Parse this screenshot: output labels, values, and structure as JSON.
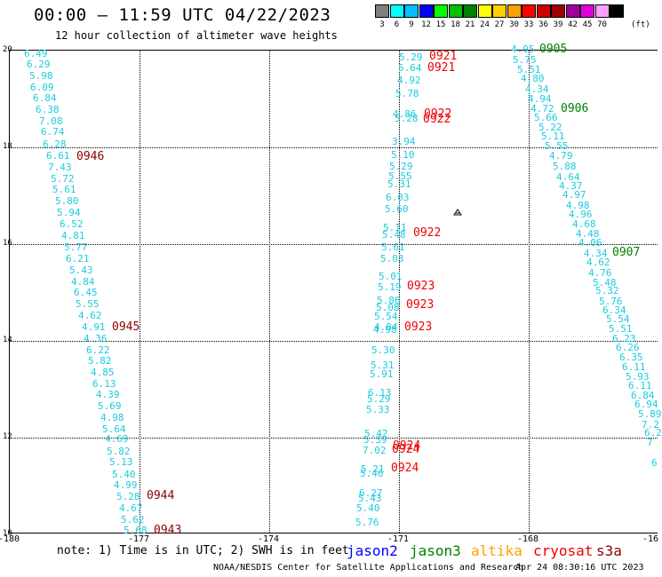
{
  "header": {
    "title": "00:00 – 11:59 UTC 04/22/2023",
    "subtitle": "12 hour collection of altimeter wave heights"
  },
  "legend": {
    "unit": "(ft)",
    "swatches": [
      {
        "label": "3",
        "color": "#808080"
      },
      {
        "label": "6",
        "color": "#00ffff"
      },
      {
        "label": "9",
        "color": "#00c0ff"
      },
      {
        "label": "12",
        "color": "#0000ff"
      },
      {
        "label": "15",
        "color": "#00ff00"
      },
      {
        "label": "18",
        "color": "#00c000"
      },
      {
        "label": "21",
        "color": "#008000"
      },
      {
        "label": "24",
        "color": "#ffff00"
      },
      {
        "label": "27",
        "color": "#ffd000"
      },
      {
        "label": "30",
        "color": "#ffa000"
      },
      {
        "label": "33",
        "color": "#ff0000"
      },
      {
        "label": "36",
        "color": "#d00000"
      },
      {
        "label": "39",
        "color": "#a00000"
      },
      {
        "label": "42",
        "color": "#a000a0"
      },
      {
        "label": "45",
        "color": "#e000e0"
      },
      {
        "label": "70",
        "color": "#ffa0ff"
      },
      {
        "label": "",
        "color": "#000000"
      }
    ]
  },
  "map": {
    "lon_range": [
      -180,
      -165.5
    ],
    "lat_range": [
      10,
      20
    ],
    "x_ticks": [
      "-180",
      "-177",
      "-174",
      "-171",
      "-168",
      "-16"
    ],
    "y_ticks": [
      "20",
      "18",
      "16",
      "14",
      "12",
      "10"
    ],
    "tracks": [
      {
        "pass": "west",
        "values": [
          "6.49",
          "6.29",
          "5.98",
          "6.09",
          "6.84",
          "6.38",
          "7.08",
          "6.74",
          "6.28",
          "6.61",
          "7.43",
          "5.72",
          "5.61",
          "5.80",
          "5.94",
          "6.52",
          "4.81",
          "5.77",
          "6.21",
          "5.43",
          "4.84",
          "6.45",
          "5.55",
          "4.62",
          "4.91",
          "4.36",
          "6.22",
          "5.82",
          "4.85",
          "6.13",
          "4.39",
          "5.69",
          "4.98",
          "5.64",
          "4.69",
          "5.82",
          "5.13",
          "5.40",
          "4.99",
          "5.28",
          "4.67",
          "5.62",
          "5.68"
        ]
      },
      {
        "pass": "middle",
        "values": [
          "5.29",
          "5.64",
          "4.92",
          "5.78",
          "4.86",
          "5.28",
          "3.94",
          "5.10",
          "5.29",
          "5.55",
          "5.31",
          "6.03",
          "5.60",
          "5.11",
          "5.48",
          "5.61",
          "5.03",
          "5.01",
          "5.19",
          "5.86",
          "5.08",
          "5.54",
          "4.84",
          "4.98",
          "5.30",
          "5.31",
          "5.91",
          "6.13",
          "5.29",
          "5.33",
          "5.42",
          "5.39",
          "7.02",
          "5.21",
          "5.40",
          "6.27",
          "5.43",
          "5.40",
          "5.76"
        ]
      },
      {
        "pass": "east",
        "values": [
          "4.95",
          "5.75",
          "5.51",
          "4.80",
          "4.34",
          "4.94",
          "4.72",
          "5.66",
          "5.22",
          "5.11",
          "5.55",
          "4.79",
          "5.88",
          "4.64",
          "4.37",
          "4.97",
          "4.98",
          "4.96",
          "4.68",
          "4.48",
          "4.06",
          "4.34",
          "4.62",
          "4.76",
          "5.48",
          "5.32",
          "5.76",
          "6.34",
          "5.54",
          "5.51",
          "6.23",
          "6.26",
          "6.35",
          "6.11",
          "5.93",
          "6.11",
          "6.84",
          "6.94",
          "5.89",
          "7.2",
          "6.2",
          "7",
          "6"
        ]
      }
    ],
    "time_labels": [
      {
        "text": "0921",
        "color": "#ee0000"
      },
      {
        "text": "0921",
        "color": "#ee0000"
      },
      {
        "text": "0922",
        "color": "#ee0000"
      },
      {
        "text": "0922",
        "color": "#ee0000"
      },
      {
        "text": "0922",
        "color": "#ee0000"
      },
      {
        "text": "0923",
        "color": "#ee0000"
      },
      {
        "text": "0923",
        "color": "#ee0000"
      },
      {
        "text": "0923",
        "color": "#ee0000"
      },
      {
        "text": "0924",
        "color": "#ee0000"
      },
      {
        "text": "0924",
        "color": "#ee0000"
      },
      {
        "text": "0924",
        "color": "#ee0000"
      },
      {
        "text": "0905",
        "color": "#008000"
      },
      {
        "text": "0906",
        "color": "#008000"
      },
      {
        "text": "0907",
        "color": "#008000"
      },
      {
        "text": "0946",
        "color": "#8b0000"
      },
      {
        "text": "0945",
        "color": "#8b0000"
      },
      {
        "text": "0944",
        "color": "#8b0000"
      },
      {
        "text": "0943",
        "color": "#8b0000"
      }
    ]
  },
  "footer": {
    "note": "note: 1) Time is in UTC; 2) SWH is in feet",
    "satellites": [
      {
        "name": "jason2",
        "color": "#0000ff"
      },
      {
        "name": "jason3",
        "color": "#008000"
      },
      {
        "name": "altika",
        "color": "#ffa000"
      },
      {
        "name": "cryosat",
        "color": "#ee0000"
      },
      {
        "name": "s3a",
        "color": "#8b0000"
      }
    ],
    "credit": "NOAA/NESDIS Center for Satellite Applications and Research",
    "timestamp": "Apr 24 08:30:16 UTC 2023"
  }
}
